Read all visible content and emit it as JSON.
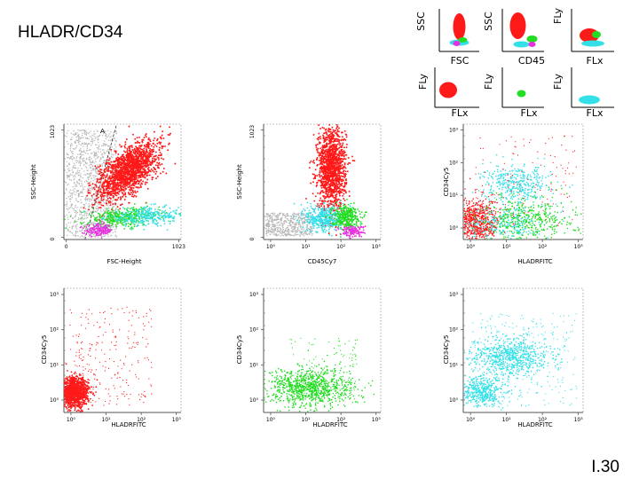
{
  "slide": {
    "title": "HLADR/CD34",
    "number": "I.30"
  },
  "colors": {
    "red": "#ff1a1a",
    "green": "#22dd22",
    "cyan": "#33e0e8",
    "magenta": "#e830e0",
    "gray": "#b4b4b4"
  },
  "chart_data": [
    {
      "id": "thumb-1",
      "type": "scatter",
      "xlabel": "FSC",
      "ylabel": "SSC"
    },
    {
      "id": "thumb-2",
      "type": "scatter",
      "xlabel": "CD45",
      "ylabel": "SSC"
    },
    {
      "id": "thumb-3",
      "type": "scatter",
      "xlabel": "FLx",
      "ylabel": "FLy"
    },
    {
      "id": "thumb-4",
      "type": "scatter",
      "xlabel": "FLx",
      "ylabel": "FLy"
    },
    {
      "id": "thumb-5",
      "type": "scatter",
      "xlabel": "FLx",
      "ylabel": "FLy"
    },
    {
      "id": "thumb-6",
      "type": "scatter",
      "xlabel": "FLx",
      "ylabel": "FLy"
    },
    {
      "id": "p1",
      "type": "scatter",
      "xlabel": "FSC-Height",
      "ylabel": "SSC-Height",
      "x_ticks": [
        "0",
        "1023"
      ],
      "y_ticks": [
        "0",
        "1023"
      ],
      "gate_label": "A",
      "scale": "linear",
      "populations": [
        "gray",
        "red",
        "green",
        "cyan",
        "magenta"
      ]
    },
    {
      "id": "p2",
      "type": "scatter",
      "xlabel": "CD45Cy7",
      "ylabel": "SSC-Height",
      "x_ticks": [
        "10⁰",
        "10¹",
        "10²",
        "10³"
      ],
      "y_ticks": [
        "0",
        "1023"
      ],
      "scale": "log-x",
      "populations": [
        "gray",
        "red",
        "green",
        "cyan",
        "magenta"
      ]
    },
    {
      "id": "p3",
      "type": "scatter",
      "xlabel": "HLADRFITC",
      "ylabel": "CD34Cy5",
      "x_ticks": [
        "10⁰",
        "10¹",
        "10²",
        "10³"
      ],
      "y_ticks": [
        "10⁰",
        "10¹",
        "10²",
        "10³"
      ],
      "scale": "log",
      "populations": [
        "red",
        "green",
        "cyan"
      ]
    },
    {
      "id": "p4",
      "type": "scatter",
      "xlabel": "HLADRFITC",
      "ylabel": "CD34Cy5",
      "x_ticks": [
        "10⁰",
        "10¹",
        "10²",
        "10³"
      ],
      "y_ticks": [
        "10⁰",
        "10¹",
        "10²",
        "10³"
      ],
      "scale": "log",
      "populations": [
        "red"
      ]
    },
    {
      "id": "p5",
      "type": "scatter",
      "xlabel": "HLADRFITC",
      "ylabel": "CD34Cy5",
      "x_ticks": [
        "10⁰",
        "10¹",
        "10²",
        "10³"
      ],
      "y_ticks": [
        "10⁰",
        "10¹",
        "10²",
        "10³"
      ],
      "scale": "log",
      "populations": [
        "green"
      ]
    },
    {
      "id": "p6",
      "type": "scatter",
      "xlabel": "HLADRFITC",
      "ylabel": "CD34Cy5",
      "x_ticks": [
        "10⁰",
        "10¹",
        "10²",
        "10³"
      ],
      "y_ticks": [
        "10⁰",
        "10¹",
        "10²",
        "10³"
      ],
      "scale": "log",
      "populations": [
        "cyan"
      ]
    }
  ]
}
